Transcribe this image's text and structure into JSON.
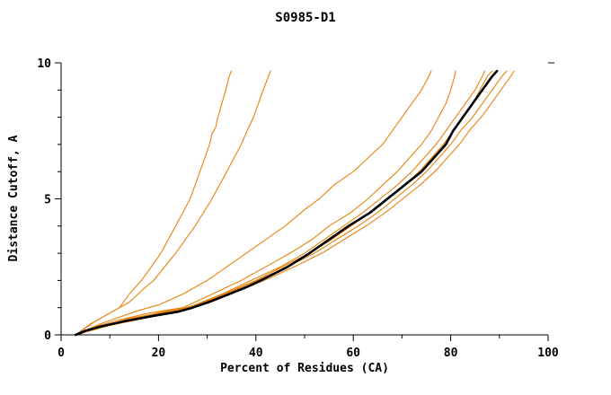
{
  "window": {
    "background": "#ffffff"
  },
  "chart_data": {
    "type": "line",
    "title": "S0985-D1",
    "xlabel": "Percent of Residues (CA)",
    "ylabel": "Distance Cutoff, A",
    "xlim": [
      0,
      100
    ],
    "ylim": [
      0,
      10
    ],
    "x_major_ticks": [
      0,
      20,
      40,
      60,
      80,
      100
    ],
    "x_minor_ticks": [
      10,
      30,
      50,
      70,
      90
    ],
    "y_major_ticks": [
      0,
      5,
      10
    ],
    "y_minor_ticks": [
      1,
      2,
      3,
      4,
      6,
      7,
      8,
      9
    ],
    "grid": false,
    "legend": "none",
    "axis_color": "#000000",
    "series_colors": {
      "model": "#000000",
      "reference": "#e8820c"
    },
    "series": [
      {
        "name": "orange-1",
        "color": "#e8820c",
        "stroke_width": 1.1,
        "points": [
          [
            3,
            0
          ],
          [
            6,
            0.4
          ],
          [
            9,
            0.7
          ],
          [
            12,
            1
          ],
          [
            14,
            1.5
          ],
          [
            16.5,
            2
          ],
          [
            18.5,
            2.5
          ],
          [
            20.5,
            3
          ],
          [
            22,
            3.5
          ],
          [
            23.5,
            4
          ],
          [
            25,
            4.5
          ],
          [
            26.5,
            5
          ],
          [
            27.5,
            5.5
          ],
          [
            28.5,
            6
          ],
          [
            29.5,
            6.5
          ],
          [
            30.5,
            7
          ],
          [
            31,
            7.4
          ],
          [
            31.7,
            7.6
          ],
          [
            32.2,
            8
          ],
          [
            33,
            8.5
          ],
          [
            33.8,
            9
          ],
          [
            34.5,
            9.5
          ],
          [
            35,
            9.7
          ]
        ]
      },
      {
        "name": "orange-2",
        "color": "#e8820c",
        "stroke_width": 1.1,
        "points": [
          [
            3,
            0
          ],
          [
            7,
            0.5
          ],
          [
            10,
            0.8
          ],
          [
            14,
            1.2
          ],
          [
            17,
            1.7
          ],
          [
            19,
            2
          ],
          [
            23.5,
            3
          ],
          [
            27.5,
            4
          ],
          [
            31,
            5
          ],
          [
            34,
            6
          ],
          [
            37,
            7
          ],
          [
            38.2,
            7.5
          ],
          [
            39.5,
            8
          ],
          [
            41.5,
            9
          ],
          [
            43,
            9.7
          ]
        ]
      },
      {
        "name": "orange-3",
        "color": "#e8820c",
        "stroke_width": 1.1,
        "points": [
          [
            3,
            0
          ],
          [
            8,
            0.4
          ],
          [
            12,
            0.65
          ],
          [
            16,
            0.9
          ],
          [
            20,
            1.1
          ],
          [
            25,
            1.5
          ],
          [
            30,
            2
          ],
          [
            34,
            2.5
          ],
          [
            38,
            3
          ],
          [
            42,
            3.5
          ],
          [
            46,
            4
          ],
          [
            50,
            4.6
          ],
          [
            53,
            5
          ],
          [
            56,
            5.5
          ],
          [
            60,
            6
          ],
          [
            63,
            6.5
          ],
          [
            66,
            7
          ],
          [
            68,
            7.5
          ],
          [
            70,
            8
          ],
          [
            72,
            8.5
          ],
          [
            74,
            9
          ],
          [
            75.5,
            9.5
          ],
          [
            76,
            9.7
          ]
        ]
      },
      {
        "name": "orange-4",
        "color": "#e8820c",
        "stroke_width": 1.1,
        "points": [
          [
            3,
            0
          ],
          [
            7,
            0.3
          ],
          [
            12,
            0.55
          ],
          [
            18,
            0.8
          ],
          [
            25,
            1
          ],
          [
            31,
            1.5
          ],
          [
            37,
            2
          ],
          [
            42,
            2.5
          ],
          [
            47,
            3
          ],
          [
            51.5,
            3.5
          ],
          [
            55,
            4
          ],
          [
            59.5,
            4.5
          ],
          [
            63,
            5
          ],
          [
            66,
            5.5
          ],
          [
            69,
            6
          ],
          [
            71.5,
            6.5
          ],
          [
            74,
            7
          ],
          [
            76,
            7.5
          ],
          [
            77.5,
            8
          ],
          [
            79,
            8.5
          ],
          [
            80,
            9
          ],
          [
            80.8,
            9.5
          ],
          [
            81,
            9.7
          ]
        ]
      },
      {
        "name": "orange-5",
        "color": "#e8820c",
        "stroke_width": 1.1,
        "points": [
          [
            3,
            0
          ],
          [
            8,
            0.3
          ],
          [
            14,
            0.6
          ],
          [
            20,
            0.8
          ],
          [
            26,
            1
          ],
          [
            33,
            1.5
          ],
          [
            39,
            2
          ],
          [
            45,
            2.5
          ],
          [
            50,
            3
          ],
          [
            54,
            3.5
          ],
          [
            58,
            4
          ],
          [
            62,
            4.5
          ],
          [
            65.5,
            5
          ],
          [
            69,
            5.5
          ],
          [
            72,
            6
          ],
          [
            74.5,
            6.5
          ],
          [
            77,
            7
          ],
          [
            79,
            7.5
          ],
          [
            81,
            8
          ],
          [
            83,
            8.5
          ],
          [
            85,
            9
          ],
          [
            86.5,
            9.5
          ],
          [
            87,
            9.7
          ]
        ]
      },
      {
        "name": "orange-6",
        "color": "#e8820c",
        "stroke_width": 1.1,
        "points": [
          [
            3,
            0
          ],
          [
            9,
            0.35
          ],
          [
            15,
            0.6
          ],
          [
            21,
            0.85
          ],
          [
            27,
            1.05
          ],
          [
            34,
            1.55
          ],
          [
            40,
            2
          ],
          [
            46,
            2.55
          ],
          [
            51,
            3
          ],
          [
            55.5,
            3.5
          ],
          [
            59.5,
            4
          ],
          [
            63.5,
            4.5
          ],
          [
            67,
            5
          ],
          [
            70.5,
            5.5
          ],
          [
            73.5,
            6
          ],
          [
            76,
            6.5
          ],
          [
            78.5,
            7
          ],
          [
            80.5,
            7.5
          ],
          [
            82.5,
            8
          ],
          [
            84.5,
            8.5
          ],
          [
            86,
            9
          ],
          [
            87.5,
            9.5
          ],
          [
            88.5,
            9.7
          ]
        ]
      },
      {
        "name": "orange-7",
        "color": "#e8820c",
        "stroke_width": 1.1,
        "points": [
          [
            3,
            0
          ],
          [
            9,
            0.3
          ],
          [
            16,
            0.6
          ],
          [
            22,
            0.85
          ],
          [
            28,
            1.1
          ],
          [
            35,
            1.6
          ],
          [
            41,
            2.05
          ],
          [
            47,
            2.55
          ],
          [
            52,
            3
          ],
          [
            56.5,
            3.5
          ],
          [
            61,
            4
          ],
          [
            65,
            4.5
          ],
          [
            68.5,
            5
          ],
          [
            72,
            5.5
          ],
          [
            75,
            6
          ],
          [
            77.5,
            6.5
          ],
          [
            80,
            7
          ],
          [
            82,
            7.5
          ],
          [
            84.5,
            8
          ],
          [
            86.5,
            8.5
          ],
          [
            88.5,
            9
          ],
          [
            90.5,
            9.5
          ],
          [
            91.5,
            9.7
          ]
        ]
      },
      {
        "name": "orange-8",
        "color": "#e8820c",
        "stroke_width": 1.1,
        "points": [
          [
            3,
            0
          ],
          [
            10,
            0.35
          ],
          [
            17,
            0.6
          ],
          [
            24,
            0.9
          ],
          [
            30,
            1.15
          ],
          [
            37,
            1.65
          ],
          [
            43,
            2.1
          ],
          [
            49,
            2.6
          ],
          [
            54,
            3.05
          ],
          [
            58.5,
            3.55
          ],
          [
            63,
            4.05
          ],
          [
            67,
            4.55
          ],
          [
            70.5,
            5.05
          ],
          [
            74,
            5.55
          ],
          [
            77,
            6.05
          ],
          [
            79.5,
            6.55
          ],
          [
            82,
            7.05
          ],
          [
            84,
            7.55
          ],
          [
            86.5,
            8.05
          ],
          [
            88.5,
            8.55
          ],
          [
            90.5,
            9.05
          ],
          [
            92.5,
            9.55
          ],
          [
            93,
            9.7
          ]
        ]
      },
      {
        "name": "model",
        "color": "#000000",
        "stroke_width": 2.6,
        "points": [
          [
            3,
            0
          ],
          [
            5,
            0.15
          ],
          [
            8,
            0.3
          ],
          [
            13,
            0.5
          ],
          [
            19,
            0.7
          ],
          [
            24,
            0.85
          ],
          [
            27,
            1
          ],
          [
            31,
            1.25
          ],
          [
            34.5,
            1.5
          ],
          [
            38,
            1.75
          ],
          [
            41,
            2
          ],
          [
            46.5,
            2.5
          ],
          [
            51,
            3
          ],
          [
            55,
            3.5
          ],
          [
            59,
            4
          ],
          [
            63.5,
            4.5
          ],
          [
            67,
            5
          ],
          [
            70.5,
            5.5
          ],
          [
            74,
            6
          ],
          [
            76.5,
            6.5
          ],
          [
            79,
            7
          ],
          [
            80.5,
            7.5
          ],
          [
            82.5,
            8
          ],
          [
            84.5,
            8.5
          ],
          [
            86.5,
            9
          ],
          [
            88.5,
            9.5
          ],
          [
            89.5,
            9.7
          ]
        ]
      }
    ]
  }
}
